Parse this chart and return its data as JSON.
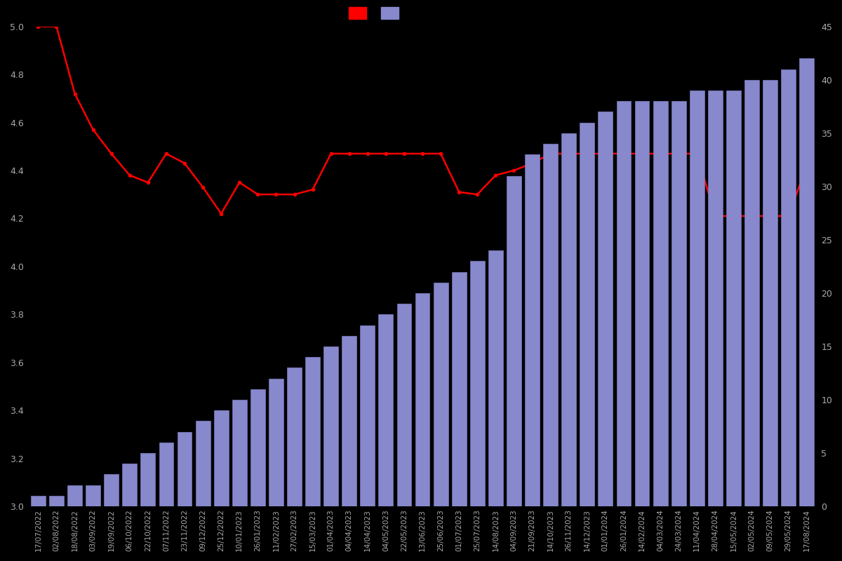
{
  "dates": [
    "17/07/2022",
    "02/08/2022",
    "18/08/2022",
    "03/09/2022",
    "19/09/2022",
    "06/10/2022",
    "22/10/2022",
    "07/11/2022",
    "23/11/2022",
    "09/12/2022",
    "25/12/2022",
    "10/01/2023",
    "26/01/2023",
    "11/02/2023",
    "27/02/2023",
    "15/03/2023",
    "01/04/2023",
    "04/04/2023",
    "14/04/2023",
    "04/05/2023",
    "22/05/2023",
    "13/06/2023",
    "25/06/2023",
    "01/07/2023",
    "25/07/2023",
    "14/08/2023",
    "04/09/2023",
    "21/09/2023",
    "14/10/2023",
    "26/11/2023",
    "14/12/2023",
    "01/01/2024",
    "26/01/2024",
    "14/02/2024",
    "04/03/2024",
    "24/03/2024",
    "11/04/2024",
    "28/04/2024",
    "15/05/2024",
    "02/05/2024",
    "09/05/2024",
    "29/05/2024",
    "17/08/2024"
  ],
  "bar_values": [
    1,
    1,
    2,
    2,
    3,
    4,
    5,
    6,
    7,
    8,
    9,
    10,
    11,
    12,
    13,
    14,
    15,
    16,
    17,
    18,
    19,
    20,
    21,
    22,
    23,
    24,
    31,
    33,
    34,
    35,
    36,
    37,
    38,
    38,
    38,
    38,
    39,
    39,
    39,
    40,
    40,
    41,
    42
  ],
  "rating_values": [
    5.0,
    5.0,
    4.72,
    4.57,
    4.47,
    4.38,
    4.35,
    4.47,
    4.43,
    4.33,
    4.22,
    4.35,
    4.3,
    4.3,
    4.3,
    4.32,
    4.47,
    4.47,
    4.47,
    4.47,
    4.47,
    4.47,
    4.47,
    4.31,
    4.3,
    4.38,
    4.4,
    4.43,
    4.47,
    4.47,
    4.47,
    4.47,
    4.47,
    4.47,
    4.47,
    4.47,
    4.47,
    4.21,
    4.21,
    4.21,
    4.21,
    4.21,
    4.42
  ],
  "bar_color": "#8888cc",
  "bar_edge_color": "#7777bb",
  "line_color": "#ff0000",
  "background_color": "#000000",
  "text_color": "#aaaaaa",
  "ylim_left": [
    3.0,
    5.0
  ],
  "ylim_right": [
    0,
    45
  ],
  "yticks_left": [
    3.0,
    3.2,
    3.4,
    3.6,
    3.8,
    4.0,
    4.2,
    4.4,
    4.6,
    4.8,
    5.0
  ],
  "yticks_right": [
    0,
    5,
    10,
    15,
    20,
    25,
    30,
    35,
    40,
    45
  ],
  "line_marker": "o",
  "line_marker_size": 3,
  "line_linewidth": 1.8,
  "figsize": [
    12.0,
    8.0
  ],
  "dpi": 100
}
